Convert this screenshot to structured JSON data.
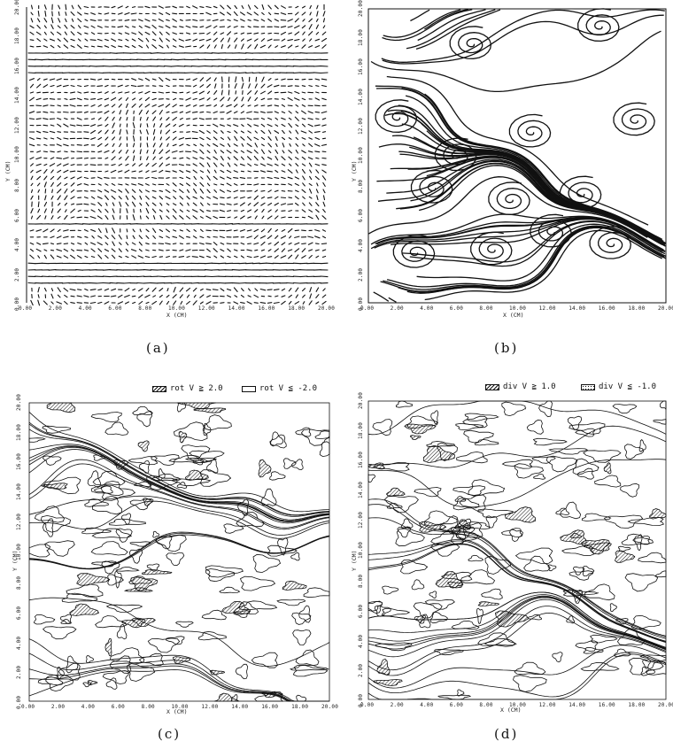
{
  "panels": [
    {
      "id": "a",
      "caption": "(a)",
      "kind": "vector-field",
      "xlabel": "X (CM)",
      "ylabel": "Y (CM)",
      "xticks": [
        "0.00",
        "2.00",
        "4.00",
        "6.00",
        "8.00",
        "10.00",
        "12.00",
        "14.00",
        "16.00",
        "18.00",
        "20.00"
      ],
      "yticks": [
        "0.00",
        "2.00",
        "4.00",
        "6.00",
        "8.00",
        "10.00",
        "12.00",
        "14.00",
        "16.00",
        "18.00",
        "20.00"
      ]
    },
    {
      "id": "b",
      "caption": "(b)",
      "kind": "streamlines",
      "xlabel": "X (CM)",
      "ylabel": "Y (CM)",
      "xticks": [
        "0.00",
        "2.00",
        "4.00",
        "6.00",
        "8.00",
        "10.00",
        "12.00",
        "14.00",
        "16.00",
        "18.00",
        "20.00"
      ],
      "yticks": [
        "0.00",
        "2.00",
        "4.00",
        "6.00",
        "8.00",
        "10.00",
        "12.00",
        "14.00",
        "16.00",
        "18.00",
        "20.00"
      ]
    },
    {
      "id": "c",
      "caption": "(c)",
      "kind": "contour",
      "xlabel": "X (CM)",
      "ylabel": "Y (CM)",
      "xticks": [
        "0.00",
        "2.00",
        "4.00",
        "6.00",
        "8.00",
        "10.00",
        "12.00",
        "14.00",
        "16.00",
        "18.00",
        "20.00"
      ],
      "yticks": [
        "0.00",
        "2.00",
        "4.00",
        "6.00",
        "8.00",
        "10.00",
        "12.00",
        "14.00",
        "16.00",
        "18.00",
        "20.00"
      ],
      "legend": [
        {
          "swatch": "hatch",
          "text": "rot V ≧ 2.0"
        },
        {
          "swatch": "empty",
          "text": "rot V ≦ -2.0"
        }
      ]
    },
    {
      "id": "d",
      "caption": "(d)",
      "kind": "contour",
      "xlabel": "X (CM)",
      "ylabel": "Y (CM)",
      "xticks": [
        "0.00",
        "2.00",
        "4.00",
        "6.00",
        "8.00",
        "10.00",
        "12.00",
        "14.00",
        "16.00",
        "18.00",
        "20.00"
      ],
      "yticks": [
        "0.00",
        "2.00",
        "4.00",
        "6.00",
        "8.00",
        "10.00",
        "12.00",
        "14.00",
        "16.00",
        "18.00",
        "20.00"
      ],
      "legend": [
        {
          "swatch": "hatch",
          "text": "div V ≧ 1.0"
        },
        {
          "swatch": "dot",
          "text": "div V ≦ -1.0"
        }
      ]
    }
  ]
}
